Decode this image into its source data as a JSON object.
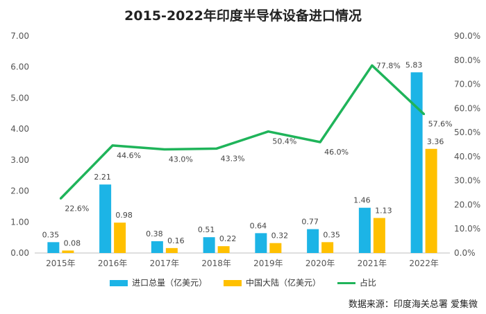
{
  "chart_data": {
    "type": "bar",
    "title": "2015-2022年印度半导体设备进口情况",
    "categories": [
      "2015年",
      "2016年",
      "2017年",
      "2018年",
      "2019年",
      "2020年",
      "2021年",
      "2022年"
    ],
    "series": [
      {
        "name": "进口总量（亿美元）",
        "type": "bar",
        "axis": "left",
        "color": "#1CB4E6",
        "values": [
          0.35,
          2.21,
          0.38,
          0.51,
          0.64,
          0.77,
          1.46,
          5.83
        ],
        "labels": [
          "0.35",
          "2.21",
          "0.38",
          "0.51",
          "0.64",
          "0.77",
          "1.46",
          "5.83"
        ]
      },
      {
        "name": "中国大陆（亿美元）",
        "type": "bar",
        "axis": "left",
        "color": "#FFC000",
        "values": [
          0.08,
          0.98,
          0.16,
          0.22,
          0.32,
          0.35,
          1.13,
          3.36
        ],
        "labels": [
          "0.08",
          "0.98",
          "0.16",
          "0.22",
          "0.32",
          "0.35",
          "1.13",
          "3.36"
        ]
      },
      {
        "name": "占比",
        "type": "line",
        "axis": "right",
        "color": "#1FB45A",
        "values": [
          22.6,
          44.6,
          43.0,
          43.3,
          50.4,
          46.0,
          77.8,
          57.6
        ],
        "labels": [
          "22.6%",
          "44.6%",
          "43.0%",
          "43.3%",
          "50.4%",
          "46.0%",
          "77.8%",
          "57.6%"
        ]
      }
    ],
    "ylim": [
      0,
      7
    ],
    "y_ticks": [
      "0.00",
      "1.00",
      "2.00",
      "3.00",
      "4.00",
      "5.00",
      "6.00",
      "7.00"
    ],
    "y2lim": [
      0,
      90
    ],
    "y2_ticks": [
      "0.0%",
      "10.0%",
      "20.0%",
      "30.0%",
      "40.0%",
      "50.0%",
      "60.0%",
      "70.0%",
      "80.0%",
      "90.0%"
    ],
    "grid": false,
    "legend_position": "bottom"
  },
  "source_note": "数据来源：印度海关总署 爱集微"
}
